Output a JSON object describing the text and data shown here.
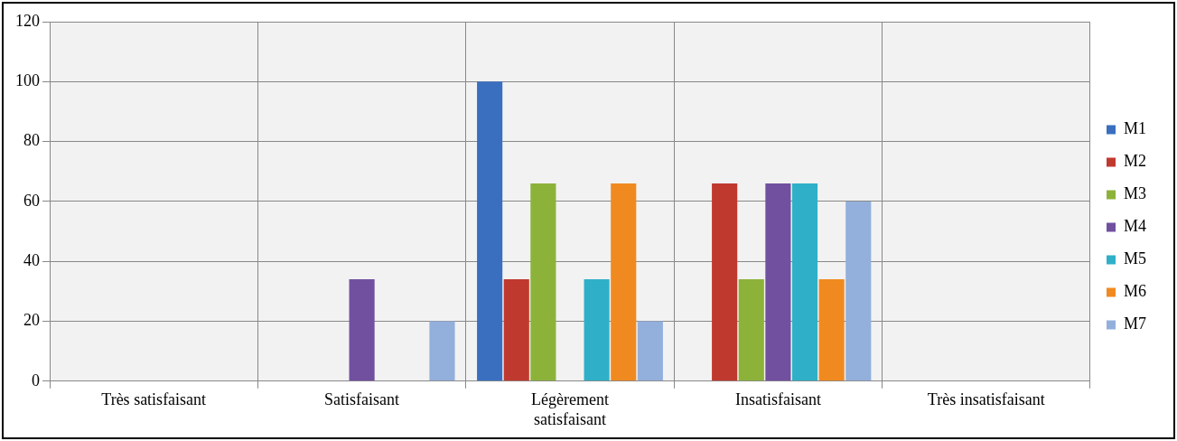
{
  "chart_data": {
    "type": "bar",
    "categories": [
      "Très satisfaisant",
      "Satisfaisant",
      "Légèrement satisfaisant",
      "Insatisfaisant",
      "Très insatisfaisant"
    ],
    "series": [
      {
        "name": "M1",
        "color": "#3a6fc0",
        "values": [
          null,
          null,
          100,
          null,
          null
        ]
      },
      {
        "name": "M2",
        "color": "#c0392f",
        "values": [
          null,
          null,
          34,
          66,
          null
        ]
      },
      {
        "name": "M3",
        "color": "#8db23a",
        "values": [
          null,
          null,
          66,
          34,
          null
        ]
      },
      {
        "name": "M4",
        "color": "#7150a0",
        "values": [
          null,
          34,
          null,
          66,
          null
        ]
      },
      {
        "name": "M5",
        "color": "#2fb0c8",
        "values": [
          null,
          null,
          34,
          66,
          null
        ]
      },
      {
        "name": "M6",
        "color": "#f08a20",
        "values": [
          null,
          null,
          66,
          34,
          null
        ]
      },
      {
        "name": "M7",
        "color": "#93b0dc",
        "values": [
          null,
          20,
          20,
          60,
          null
        ]
      }
    ],
    "ylim": [
      0,
      120
    ],
    "yticks": [
      0,
      20,
      40,
      60,
      80,
      100,
      120
    ],
    "grid": true,
    "legend": "right"
  }
}
